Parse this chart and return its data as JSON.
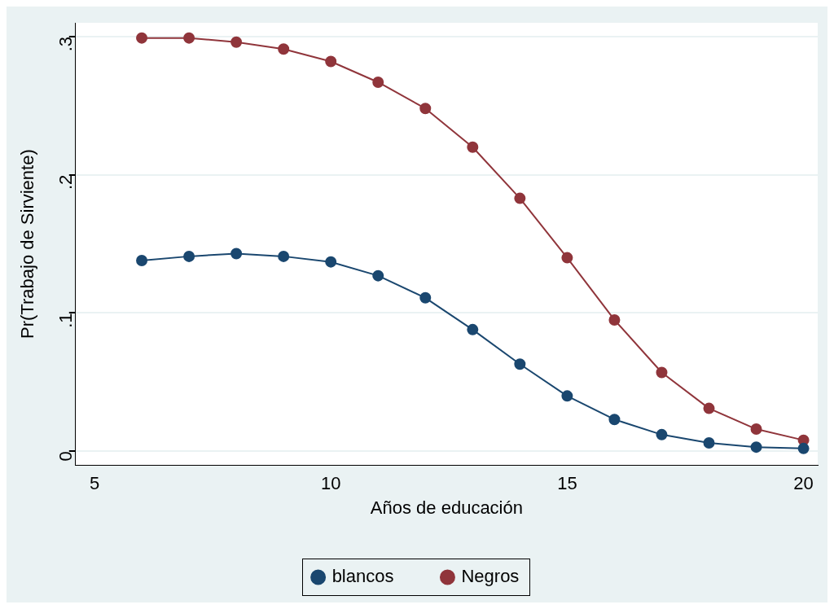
{
  "chart_data": {
    "type": "line",
    "xlabel": "Años de educación",
    "ylabel": "Pr(Trabajo de Sirviente)",
    "x": [
      6,
      7,
      8,
      9,
      10,
      11,
      12,
      13,
      14,
      15,
      16,
      17,
      18,
      19,
      20
    ],
    "series": [
      {
        "name": "blancos",
        "color": "#1a476f",
        "values": [
          0.138,
          0.141,
          0.143,
          0.141,
          0.137,
          0.127,
          0.111,
          0.088,
          0.063,
          0.04,
          0.023,
          0.012,
          0.006,
          0.003,
          0.002
        ]
      },
      {
        "name": "Negros",
        "color": "#90353b",
        "values": [
          0.299,
          0.299,
          0.296,
          0.291,
          0.282,
          0.267,
          0.248,
          0.22,
          0.183,
          0.14,
          0.095,
          0.057,
          0.031,
          0.016,
          0.008
        ]
      }
    ],
    "xlim": [
      4.6,
      20.3
    ],
    "xticks": [
      5,
      10,
      15,
      20
    ],
    "ylim": [
      -0.01,
      0.31
    ],
    "yticks": [
      {
        "value": 0,
        "label": "0"
      },
      {
        "value": 0.1,
        "label": ".1"
      },
      {
        "value": 0.2,
        "label": ".2"
      },
      {
        "value": 0.3,
        "label": ".3"
      }
    ],
    "grid": "y",
    "legend": "bottom",
    "marker": "circle",
    "line_style": "solid"
  }
}
